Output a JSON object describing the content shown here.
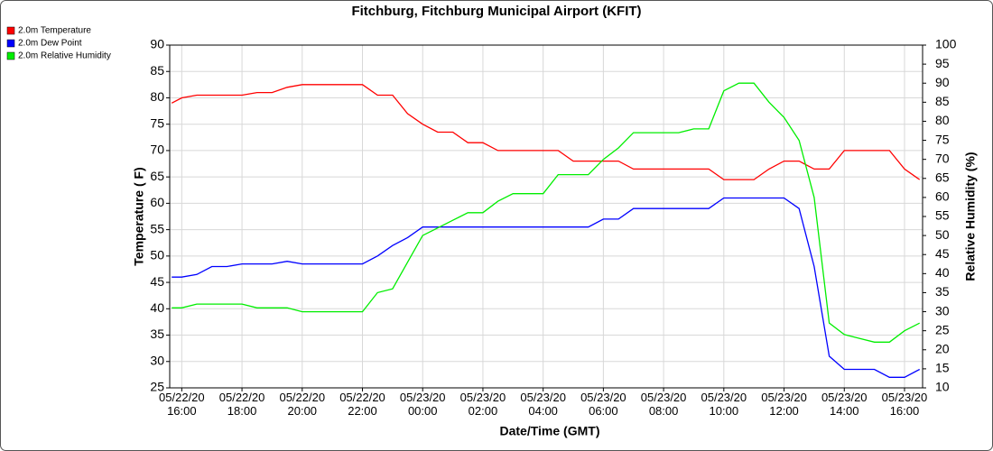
{
  "chart_data": {
    "type": "line",
    "title": "Fitchburg, Fitchburg Municipal Airport (KFIT)",
    "x_label": "Date/Time (GMT)",
    "y_label": "Temperature ( F)",
    "y2_label": "Relative Humidity (%)",
    "legend": "top-left",
    "grid": true,
    "xlim": [
      "2020-05-22T15:36",
      "2020-05-23T16:36"
    ],
    "xticks": [
      {
        "value": "2020-05-22T16:00",
        "label": "05/22/20\n16:00"
      },
      {
        "value": "2020-05-22T18:00",
        "label": "05/22/20\n18:00"
      },
      {
        "value": "2020-05-22T20:00",
        "label": "05/22/20\n20:00"
      },
      {
        "value": "2020-05-22T22:00",
        "label": "05/22/20\n22:00"
      },
      {
        "value": "2020-05-23T00:00",
        "label": "05/23/20\n00:00"
      },
      {
        "value": "2020-05-23T02:00",
        "label": "05/23/20\n02:00"
      },
      {
        "value": "2020-05-23T04:00",
        "label": "05/23/20\n04:00"
      },
      {
        "value": "2020-05-23T06:00",
        "label": "05/23/20\n06:00"
      },
      {
        "value": "2020-05-23T08:00",
        "label": "05/23/20\n08:00"
      },
      {
        "value": "2020-05-23T10:00",
        "label": "05/23/20\n10:00"
      },
      {
        "value": "2020-05-23T12:00",
        "label": "05/23/20\n12:00"
      },
      {
        "value": "2020-05-23T14:00",
        "label": "05/23/20\n14:00"
      },
      {
        "value": "2020-05-23T16:00",
        "label": "05/23/20\n16:00"
      }
    ],
    "ylim": [
      25,
      90
    ],
    "yticks": [
      25,
      30,
      35,
      40,
      45,
      50,
      55,
      60,
      65,
      70,
      75,
      80,
      85,
      90
    ],
    "y2lim": [
      10,
      100
    ],
    "y2ticks": [
      10,
      15,
      20,
      25,
      30,
      35,
      40,
      45,
      50,
      55,
      60,
      65,
      70,
      75,
      80,
      85,
      90,
      95,
      100
    ],
    "x": [
      "2020-05-22T15:40",
      "2020-05-22T16:00",
      "2020-05-22T16:30",
      "2020-05-22T17:00",
      "2020-05-22T17:30",
      "2020-05-22T18:00",
      "2020-05-22T18:30",
      "2020-05-22T19:00",
      "2020-05-22T19:30",
      "2020-05-22T20:00",
      "2020-05-22T20:30",
      "2020-05-22T21:00",
      "2020-05-22T21:30",
      "2020-05-22T22:00",
      "2020-05-22T22:30",
      "2020-05-22T23:00",
      "2020-05-22T23:30",
      "2020-05-23T00:00",
      "2020-05-23T00:30",
      "2020-05-23T01:00",
      "2020-05-23T01:30",
      "2020-05-23T02:00",
      "2020-05-23T02:30",
      "2020-05-23T03:00",
      "2020-05-23T03:30",
      "2020-05-23T04:00",
      "2020-05-23T04:30",
      "2020-05-23T05:00",
      "2020-05-23T05:30",
      "2020-05-23T06:00",
      "2020-05-23T06:30",
      "2020-05-23T07:00",
      "2020-05-23T07:30",
      "2020-05-23T08:00",
      "2020-05-23T08:30",
      "2020-05-23T09:00",
      "2020-05-23T09:30",
      "2020-05-23T10:00",
      "2020-05-23T10:30",
      "2020-05-23T11:00",
      "2020-05-23T11:30",
      "2020-05-23T12:00",
      "2020-05-23T12:30",
      "2020-05-23T13:00",
      "2020-05-23T13:30",
      "2020-05-23T14:00",
      "2020-05-23T14:30",
      "2020-05-23T15:00",
      "2020-05-23T15:30",
      "2020-05-23T16:00",
      "2020-05-23T16:30"
    ],
    "series": [
      {
        "name": "2.0m Temperature",
        "color": "#ff0000",
        "values": [
          79,
          80,
          80.5,
          80.5,
          80.5,
          80.5,
          81,
          81,
          82,
          82.5,
          82.5,
          82.5,
          82.5,
          82.5,
          80.5,
          80.5,
          77,
          75,
          73.5,
          73.5,
          71.5,
          71.5,
          70,
          70,
          70,
          70,
          70,
          68,
          68,
          68,
          68,
          66.5,
          66.5,
          66.5,
          66.5,
          66.5,
          66.5,
          64.5,
          64.5,
          64.5,
          66.5,
          68,
          68,
          66.5,
          66.5,
          70,
          70,
          70,
          70,
          66.5,
          64.5
        ]
      },
      {
        "name": "2.0m Dew Point",
        "color": "#0000ff",
        "values": [
          46,
          46,
          46.5,
          48,
          48,
          48.5,
          48.5,
          48.5,
          49,
          48.5,
          48.5,
          48.5,
          48.5,
          48.5,
          50,
          52,
          53.5,
          55.5,
          55.5,
          55.5,
          55.5,
          55.5,
          55.5,
          55.5,
          55.5,
          55.5,
          55.5,
          55.5,
          55.5,
          57,
          57,
          59,
          59,
          59,
          59,
          59,
          59,
          61,
          61,
          61,
          61,
          61,
          59,
          48,
          31,
          28.5,
          28.5,
          28.5,
          27,
          27,
          28.5
        ]
      },
      {
        "name": "2.0m Relative Humidity",
        "color": "#00ee00",
        "axis": "y2",
        "values": [
          31,
          31,
          32,
          32,
          32,
          32,
          31,
          31,
          31,
          30,
          30,
          30,
          30,
          30,
          35,
          36,
          43,
          50,
          52,
          54,
          56,
          56,
          59,
          61,
          61,
          61,
          66,
          66,
          66,
          70,
          73,
          77,
          77,
          77,
          77,
          78,
          78,
          88,
          90,
          90,
          85,
          81,
          75,
          60,
          27,
          24,
          23,
          22,
          22,
          25,
          27
        ]
      }
    ]
  }
}
